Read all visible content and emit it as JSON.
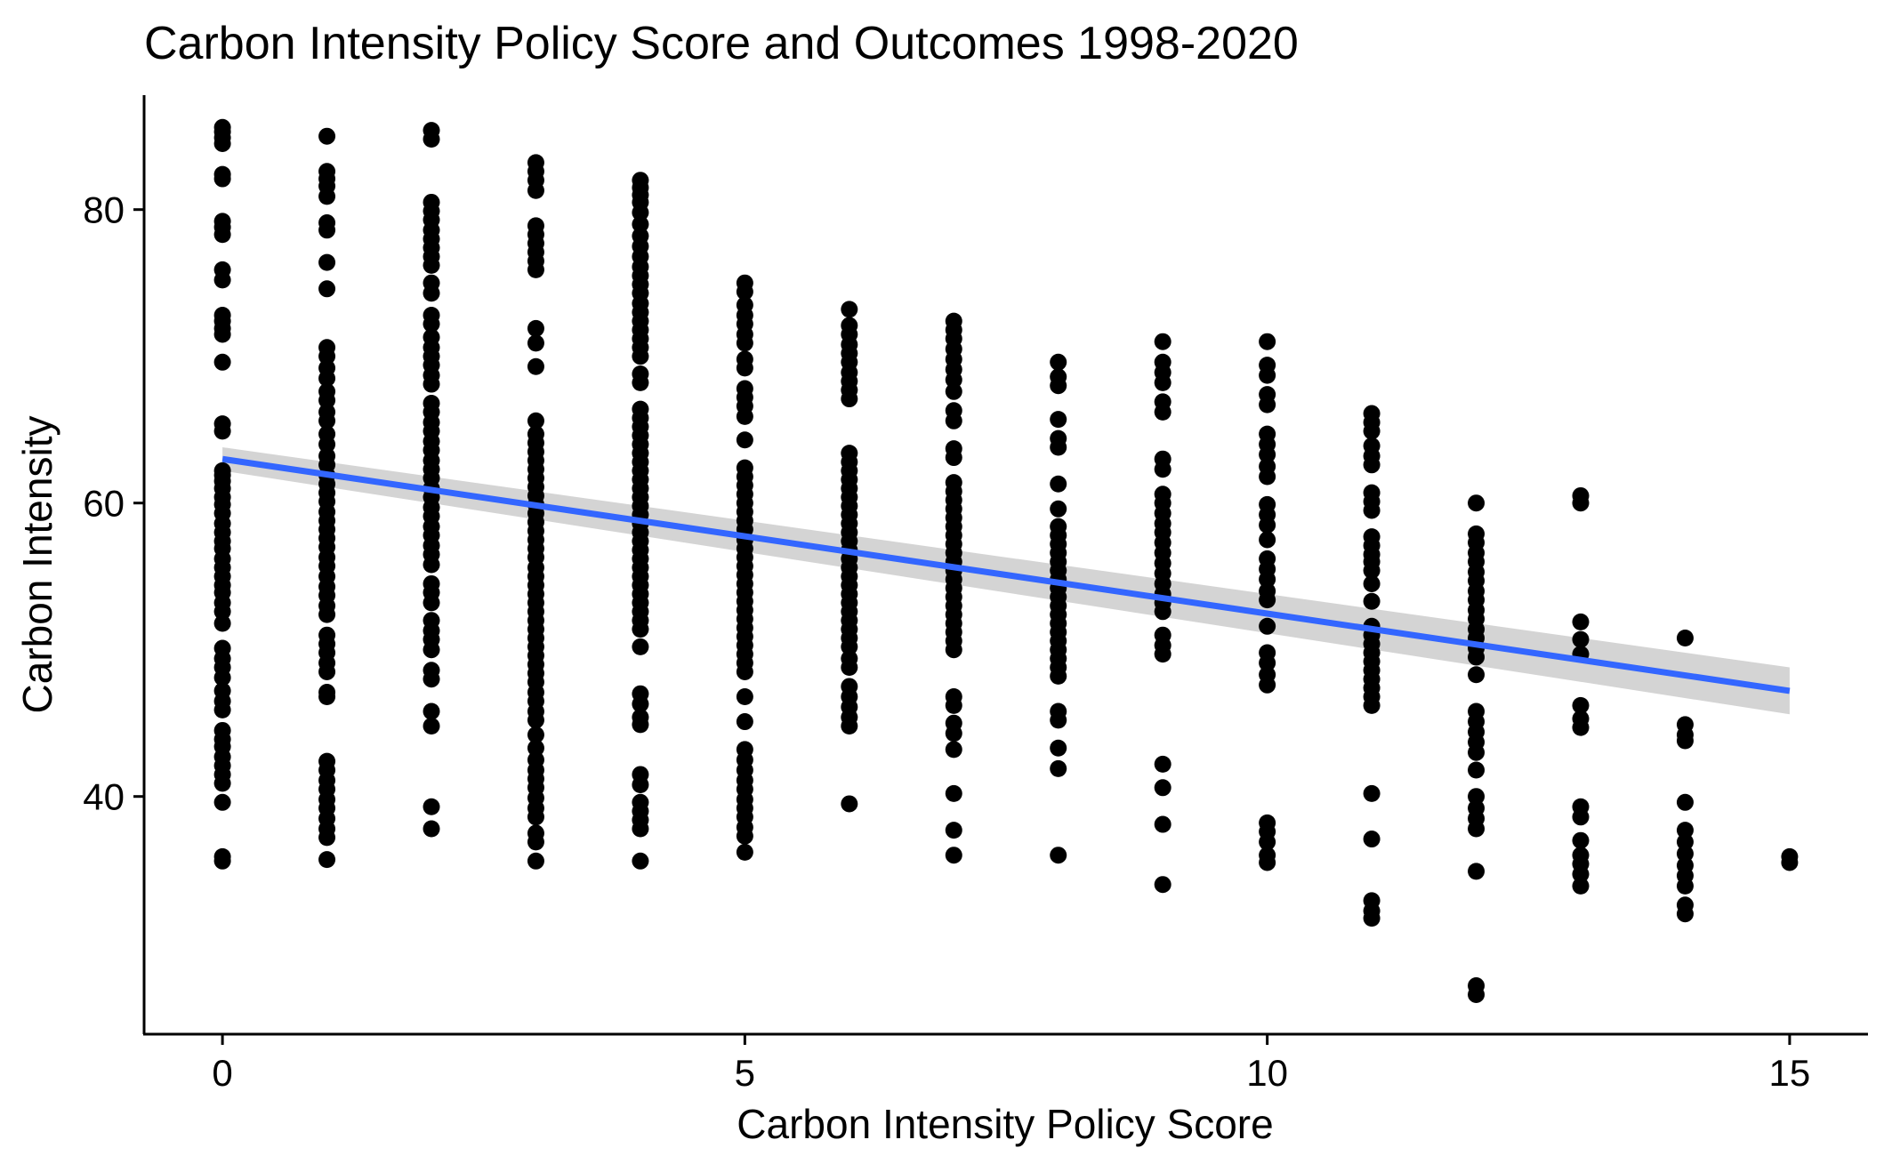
{
  "chart_data": {
    "type": "scatter",
    "title": "Carbon Intensity Policy Score and Outcomes 1998-2020",
    "xlabel": "Carbon Intensity Policy Score",
    "ylabel": "Carbon Intensity",
    "xlim": [
      -0.75,
      15.75
    ],
    "ylim": [
      23.8,
      87.8
    ],
    "x_ticks": [
      0,
      5,
      10,
      15
    ],
    "y_ticks": [
      40,
      60,
      80
    ],
    "grid": false,
    "legend": "none",
    "point_color": "#000000",
    "trend_color": "#3366FF",
    "band_color": "#CCCCCC",
    "trend": {
      "x": [
        0,
        15
      ],
      "y": [
        63.0,
        47.2
      ],
      "se_band": {
        "lower": [
          62.2,
          45.6
        ],
        "upper": [
          63.8,
          48.8
        ]
      }
    },
    "series": [
      {
        "x": 0,
        "y": [
          85.6,
          85.3,
          84.9,
          84.5,
          82.4,
          82.1,
          79.2,
          78.8,
          78.3,
          75.9,
          75.2,
          72.8,
          72.4,
          71.9,
          71.5,
          69.6,
          65.4,
          64.9,
          62.2,
          61.9,
          61.5,
          61.0,
          60.4,
          59.9,
          59.3,
          58.6,
          58.0,
          57.4,
          56.9,
          56.2,
          55.6,
          55.0,
          54.4,
          53.9,
          53.2,
          52.6,
          51.8,
          50.1,
          49.4,
          48.8,
          48.1,
          47.2,
          46.5,
          45.9,
          44.5,
          43.9,
          43.4,
          42.7,
          42.1,
          41.5,
          40.9,
          39.6,
          35.9,
          35.6
        ]
      },
      {
        "x": 1,
        "y": [
          85.0,
          82.6,
          82.1,
          81.6,
          80.9,
          79.1,
          78.6,
          76.4,
          74.6,
          70.6,
          70.0,
          69.2,
          68.5,
          67.6,
          67.0,
          66.2,
          65.6,
          64.7,
          64.0,
          63.2,
          62.6,
          61.9,
          61.3,
          60.7,
          60.1,
          59.4,
          58.8,
          58.2,
          57.6,
          57.0,
          56.3,
          55.7,
          55.0,
          54.3,
          53.7,
          53.0,
          52.4,
          51.0,
          50.4,
          49.8,
          49.1,
          48.5,
          47.1,
          46.8,
          42.4,
          41.8,
          41.1,
          40.5,
          39.8,
          39.2,
          38.5,
          37.8,
          37.2,
          35.7
        ]
      },
      {
        "x": 2,
        "y": [
          85.4,
          84.8,
          80.5,
          79.9,
          79.3,
          78.6,
          78.0,
          77.4,
          76.8,
          76.2,
          75.0,
          74.3,
          72.8,
          72.2,
          71.3,
          70.6,
          70.0,
          69.4,
          68.7,
          68.1,
          66.8,
          66.2,
          65.5,
          64.9,
          64.2,
          63.6,
          62.9,
          62.3,
          61.7,
          61.0,
          60.4,
          59.7,
          59.1,
          58.4,
          57.8,
          57.1,
          56.5,
          55.8,
          54.5,
          53.9,
          53.2,
          52.0,
          51.3,
          50.7,
          50.0,
          48.6,
          48.0,
          45.8,
          44.8,
          39.3,
          37.8
        ]
      },
      {
        "x": 3,
        "y": [
          83.2,
          82.6,
          82.0,
          81.3,
          78.9,
          78.3,
          77.7,
          77.1,
          76.5,
          75.9,
          71.9,
          70.9,
          69.3,
          65.6,
          64.7,
          64.1,
          63.5,
          62.9,
          62.3,
          61.7,
          61.1,
          60.5,
          59.9,
          59.3,
          58.7,
          58.1,
          57.5,
          56.9,
          56.3,
          55.6,
          55.0,
          54.4,
          53.8,
          53.2,
          52.6,
          52.0,
          51.4,
          50.8,
          50.2,
          49.6,
          49.0,
          48.4,
          47.8,
          47.1,
          46.5,
          45.8,
          45.2,
          44.2,
          43.3,
          42.5,
          41.8,
          41.2,
          40.6,
          39.9,
          39.2,
          38.6,
          37.5,
          36.9,
          35.6
        ]
      },
      {
        "x": 4,
        "y": [
          82.0,
          81.5,
          81.0,
          80.5,
          79.8,
          79.0,
          78.2,
          77.5,
          76.8,
          76.1,
          75.5,
          74.9,
          74.3,
          73.6,
          73.0,
          72.4,
          71.8,
          71.2,
          70.6,
          70.0,
          68.8,
          68.2,
          66.4,
          65.8,
          65.2,
          64.6,
          64.0,
          63.4,
          62.8,
          62.2,
          61.6,
          61.0,
          60.4,
          59.8,
          59.2,
          58.6,
          58.0,
          57.4,
          56.8,
          56.2,
          55.6,
          55.0,
          54.4,
          53.8,
          53.2,
          52.6,
          52.0,
          51.4,
          50.2,
          47.0,
          46.3,
          45.4,
          44.9,
          41.5,
          40.8,
          39.6,
          39.0,
          38.4,
          37.8,
          35.6
        ]
      },
      {
        "x": 5,
        "y": [
          75.0,
          74.4,
          73.5,
          72.8,
          72.2,
          71.5,
          70.9,
          69.8,
          69.2,
          67.8,
          67.2,
          66.6,
          65.9,
          64.3,
          62.4,
          61.8,
          61.2,
          60.6,
          60.0,
          59.4,
          58.8,
          58.2,
          57.5,
          56.9,
          56.3,
          55.7,
          55.1,
          54.5,
          53.9,
          53.3,
          52.7,
          52.1,
          51.5,
          50.9,
          50.3,
          49.7,
          49.1,
          48.5,
          46.8,
          45.1,
          43.2,
          42.5,
          41.8,
          41.1,
          40.5,
          39.8,
          39.2,
          38.6,
          37.9,
          37.3,
          36.2
        ]
      },
      {
        "x": 6,
        "y": [
          73.2,
          72.1,
          71.5,
          70.8,
          70.2,
          69.6,
          68.9,
          68.3,
          67.7,
          67.1,
          63.4,
          62.8,
          62.2,
          61.6,
          61.0,
          60.4,
          59.8,
          59.2,
          58.6,
          58.0,
          57.4,
          56.8,
          56.2,
          55.6,
          55.0,
          54.4,
          53.8,
          53.2,
          52.6,
          52.0,
          51.4,
          50.8,
          50.2,
          49.4,
          48.8,
          47.5,
          46.8,
          46.1,
          45.4,
          44.8,
          39.5
        ]
      },
      {
        "x": 7,
        "y": [
          72.4,
          71.8,
          71.2,
          70.5,
          69.8,
          69.1,
          68.4,
          67.6,
          66.3,
          65.6,
          63.7,
          63.1,
          61.4,
          60.8,
          60.2,
          59.6,
          59.0,
          58.4,
          57.8,
          57.2,
          56.6,
          56.0,
          55.4,
          54.8,
          54.2,
          53.6,
          53.0,
          52.4,
          51.8,
          51.2,
          50.6,
          50.0,
          46.8,
          46.2,
          45.0,
          44.3,
          43.2,
          40.2,
          37.7,
          36.0
        ]
      },
      {
        "x": 8,
        "y": [
          69.6,
          68.6,
          68.0,
          65.7,
          64.4,
          63.8,
          61.3,
          59.6,
          58.4,
          57.8,
          57.2,
          56.6,
          56.0,
          55.4,
          54.8,
          54.2,
          53.6,
          53.0,
          52.4,
          51.8,
          51.2,
          50.6,
          50.0,
          49.4,
          48.8,
          48.2,
          45.8,
          45.2,
          43.3,
          41.9,
          36.0
        ]
      },
      {
        "x": 9,
        "y": [
          71.0,
          69.6,
          68.9,
          68.2,
          66.9,
          66.2,
          63.0,
          62.3,
          60.6,
          60.0,
          59.3,
          58.6,
          58.0,
          57.3,
          56.6,
          55.9,
          55.2,
          54.5,
          53.8,
          53.2,
          52.6,
          51.0,
          50.3,
          49.7,
          42.2,
          40.6,
          38.1,
          34.0
        ]
      },
      {
        "x": 10,
        "y": [
          71.0,
          69.4,
          68.7,
          67.4,
          66.7,
          64.7,
          64.0,
          63.3,
          62.5,
          61.8,
          59.9,
          59.2,
          58.5,
          57.5,
          56.2,
          55.5,
          54.8,
          54.0,
          53.4,
          51.6,
          49.8,
          49.1,
          48.3,
          47.6,
          38.2,
          37.6,
          36.9,
          36.0,
          35.5
        ]
      },
      {
        "x": 11,
        "y": [
          66.1,
          65.5,
          64.9,
          63.9,
          63.2,
          62.6,
          60.7,
          60.1,
          59.5,
          57.7,
          57.1,
          56.5,
          56.0,
          55.4,
          54.5,
          53.3,
          51.6,
          51.0,
          50.4,
          49.8,
          49.2,
          48.6,
          48.0,
          47.4,
          46.8,
          46.2,
          40.2,
          37.1,
          32.9,
          32.2,
          31.7
        ]
      },
      {
        "x": 12,
        "y": [
          60.0,
          57.9,
          57.3,
          56.6,
          56.0,
          55.3,
          54.7,
          54.0,
          53.4,
          52.7,
          52.1,
          51.4,
          50.8,
          50.1,
          49.5,
          48.3,
          45.8,
          45.1,
          44.4,
          43.7,
          43.0,
          41.8,
          40.0,
          39.2,
          38.5,
          37.8,
          34.9,
          27.1,
          26.5
        ]
      },
      {
        "x": 13,
        "y": [
          60.5,
          60.0,
          51.9,
          50.7,
          49.7,
          46.2,
          45.3,
          44.7,
          39.3,
          38.6,
          37.0,
          36.0,
          35.4,
          34.7,
          33.9
        ]
      },
      {
        "x": 14,
        "y": [
          50.8,
          44.9,
          44.2,
          43.8,
          39.6,
          37.7,
          36.9,
          36.1,
          35.3,
          34.6,
          33.9,
          32.6,
          32.0
        ]
      },
      {
        "x": 15,
        "y": [
          35.9,
          35.5
        ]
      }
    ]
  }
}
